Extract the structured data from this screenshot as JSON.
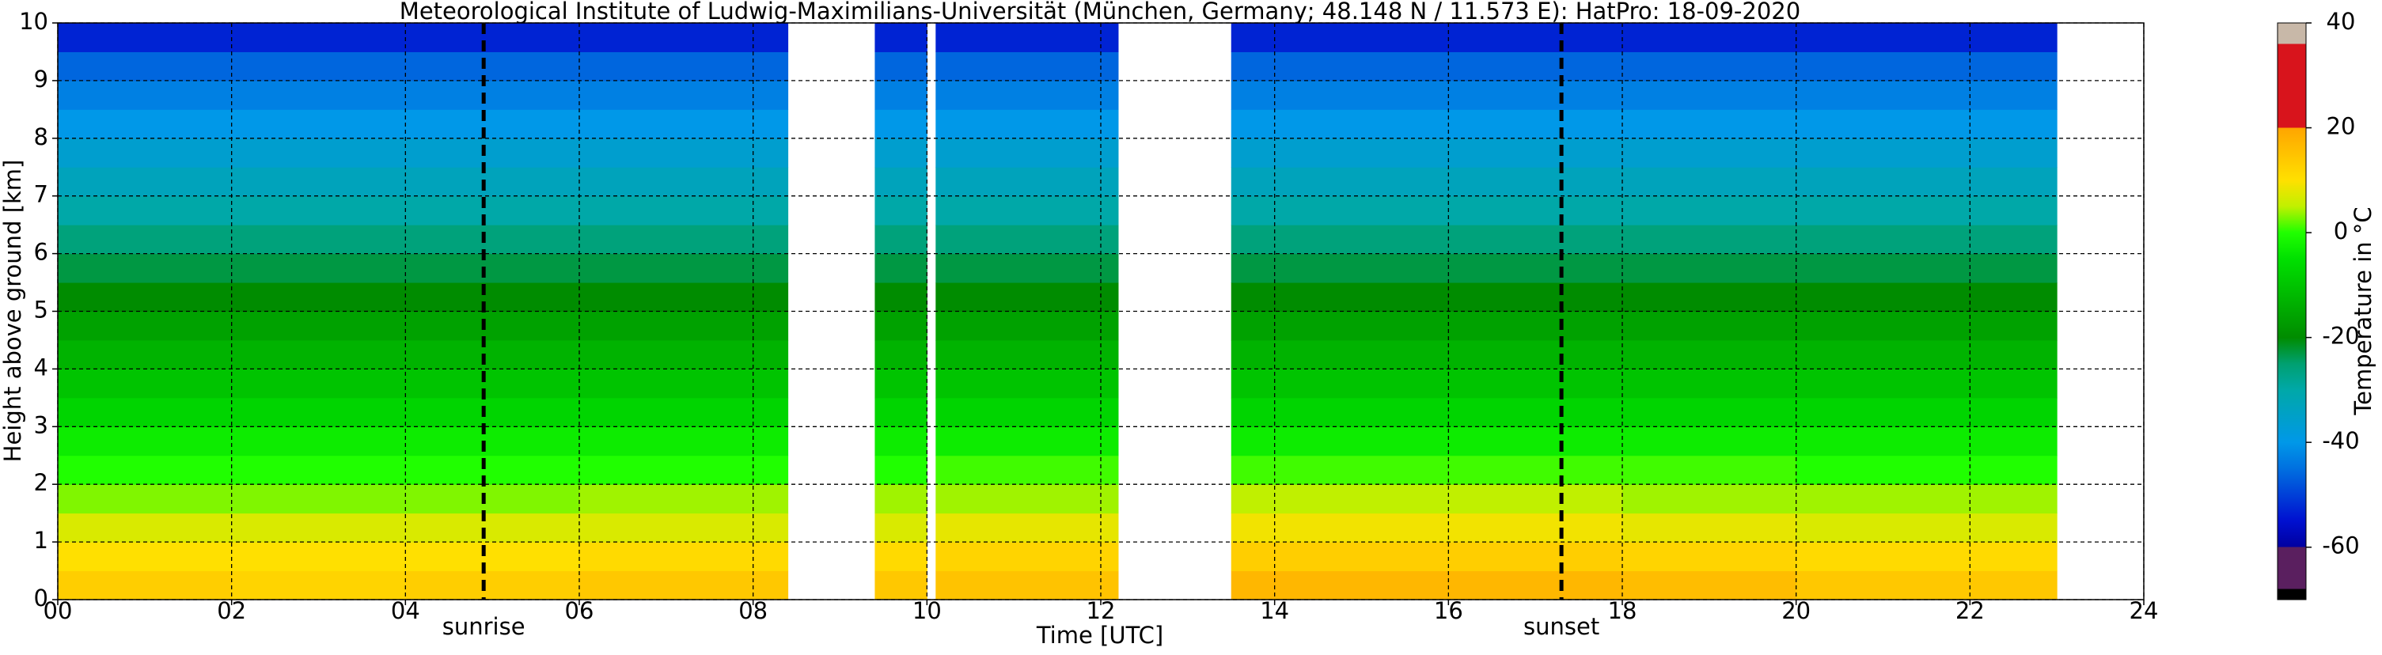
{
  "chart_data": {
    "type": "heatmap",
    "title": "Meteorological Institute of Ludwig-Maximilians-Universität (München, Germany; 48.148 N / 11.573 E):    HatPro: 18-09-2020",
    "x_label": "Time [UTC]",
    "y_label": "Height above ground [km]",
    "colorbar_label": "Temperature in $^\\circ$C",
    "x_edges": [
      0,
      2,
      4,
      6,
      8.4,
      9.4,
      10.0,
      10.1,
      12.2,
      13.5,
      16,
      18,
      20,
      23,
      24
    ],
    "y_edges": [
      0,
      0.5,
      1,
      1.5,
      2,
      2.5,
      3,
      3.5,
      4,
      4.5,
      5,
      5.5,
      6,
      6.5,
      7,
      7.5,
      8,
      8.5,
      9,
      9.5,
      10
    ],
    "values": [
      [
        13,
        12,
        13,
        14,
        null,
        14,
        null,
        15,
        null,
        17,
        17,
        16,
        14,
        null
      ],
      [
        10,
        10,
        10,
        11,
        null,
        11,
        null,
        12,
        null,
        13,
        13,
        12,
        11,
        null
      ],
      [
        7,
        7,
        7,
        7,
        null,
        7,
        null,
        8,
        null,
        9,
        9,
        8,
        7,
        null
      ],
      [
        3,
        3,
        3,
        4,
        null,
        4,
        null,
        4,
        null,
        5,
        5,
        4,
        4,
        null
      ],
      [
        0,
        0,
        0,
        0,
        null,
        0,
        null,
        1,
        null,
        1,
        1,
        1,
        0,
        null
      ],
      [
        -3,
        -3,
        -3,
        -3,
        null,
        -3,
        null,
        -3,
        null,
        -3,
        -3,
        -3,
        -3,
        null
      ],
      [
        -7,
        -7,
        -7,
        -7,
        null,
        -7,
        null,
        -7,
        null,
        -7,
        -7,
        -7,
        -7,
        null
      ],
      [
        -10,
        -10,
        -10,
        -10,
        null,
        -10,
        null,
        -10,
        null,
        -10,
        -10,
        -10,
        -10,
        null
      ],
      [
        -13,
        -13,
        -13,
        -13,
        null,
        -13,
        null,
        -13,
        null,
        -13,
        -13,
        -13,
        -13,
        null
      ],
      [
        -16,
        -16,
        -16,
        -16,
        null,
        -16,
        null,
        -16,
        null,
        -16,
        -16,
        -16,
        -16,
        null
      ],
      [
        -20,
        -20,
        -20,
        -20,
        null,
        -20,
        null,
        -20,
        null,
        -20,
        -20,
        -20,
        -20,
        null
      ],
      [
        -23,
        -23,
        -23,
        -23,
        null,
        -23,
        null,
        -23,
        null,
        -23,
        -23,
        -23,
        -23,
        null
      ],
      [
        -26,
        -26,
        -26,
        -26,
        null,
        -26,
        null,
        -26,
        null,
        -26,
        -26,
        -26,
        -26,
        null
      ],
      [
        -30,
        -30,
        -30,
        -30,
        null,
        -30,
        null,
        -30,
        null,
        -30,
        -30,
        -30,
        -30,
        null
      ],
      [
        -33,
        -33,
        -33,
        -33,
        null,
        -33,
        null,
        -33,
        null,
        -33,
        -33,
        -33,
        -33,
        null
      ],
      [
        -36,
        -36,
        -36,
        -36,
        null,
        -36,
        null,
        -36,
        null,
        -36,
        -36,
        -36,
        -36,
        null
      ],
      [
        -40,
        -40,
        -40,
        -40,
        null,
        -40,
        null,
        -40,
        null,
        -40,
        -40,
        -40,
        -40,
        null
      ],
      [
        -43,
        -43,
        -43,
        -43,
        null,
        -43,
        null,
        -43,
        null,
        -43,
        -43,
        -43,
        -43,
        null
      ],
      [
        -46,
        -46,
        -46,
        -46,
        null,
        -46,
        null,
        -46,
        null,
        -46,
        -46,
        -46,
        -46,
        null
      ],
      [
        -53,
        -53,
        -53,
        -53,
        null,
        -53,
        null,
        -53,
        null,
        -53,
        -53,
        -53,
        -53,
        null
      ]
    ],
    "xlim": [
      0,
      24
    ],
    "xticks": [
      {
        "value": 0,
        "label": "00"
      },
      {
        "value": 2,
        "label": "02"
      },
      {
        "value": 4,
        "label": "04"
      },
      {
        "value": 6,
        "label": "06"
      },
      {
        "value": 8,
        "label": "08"
      },
      10,
      12,
      14,
      16,
      18,
      20,
      22,
      24
    ],
    "ylim": [
      0,
      10
    ],
    "yticks": [
      0,
      1,
      2,
      3,
      4,
      5,
      6,
      7,
      8,
      9,
      10
    ],
    "grid": true,
    "clim": [
      -70,
      40
    ],
    "cticks": [
      -60,
      -40,
      -20,
      0,
      20,
      40
    ],
    "colormap": [
      {
        "value": -70,
        "color": "#000000"
      },
      {
        "value": -68,
        "color": "#000000"
      },
      {
        "value": -68,
        "color": "#5a1f5f"
      },
      {
        "value": -60,
        "color": "#5a1f5f"
      },
      {
        "value": -60,
        "color": "#0000a0"
      },
      {
        "value": -55,
        "color": "#0010d0"
      },
      {
        "value": -45,
        "color": "#0070e0"
      },
      {
        "value": -40,
        "color": "#0098e8"
      },
      {
        "value": -30,
        "color": "#00a8a8"
      },
      {
        "value": -25,
        "color": "#00a070"
      },
      {
        "value": -20,
        "color": "#008c00"
      },
      {
        "value": -5,
        "color": "#00e000"
      },
      {
        "value": 0,
        "color": "#20ff00"
      },
      {
        "value": 5,
        "color": "#c0f000"
      },
      {
        "value": 10,
        "color": "#ffe000"
      },
      {
        "value": 20,
        "color": "#ffa500"
      },
      {
        "value": 20,
        "color": "#d8141c"
      },
      {
        "value": 36,
        "color": "#d8141c"
      },
      {
        "value": 36,
        "color": "#c8b8a8"
      },
      {
        "value": 40,
        "color": "#c8b8a8"
      }
    ],
    "annotations": [
      {
        "text": "sunrise",
        "x": 4.9
      },
      {
        "text": "sunset",
        "x": 17.3
      }
    ]
  }
}
